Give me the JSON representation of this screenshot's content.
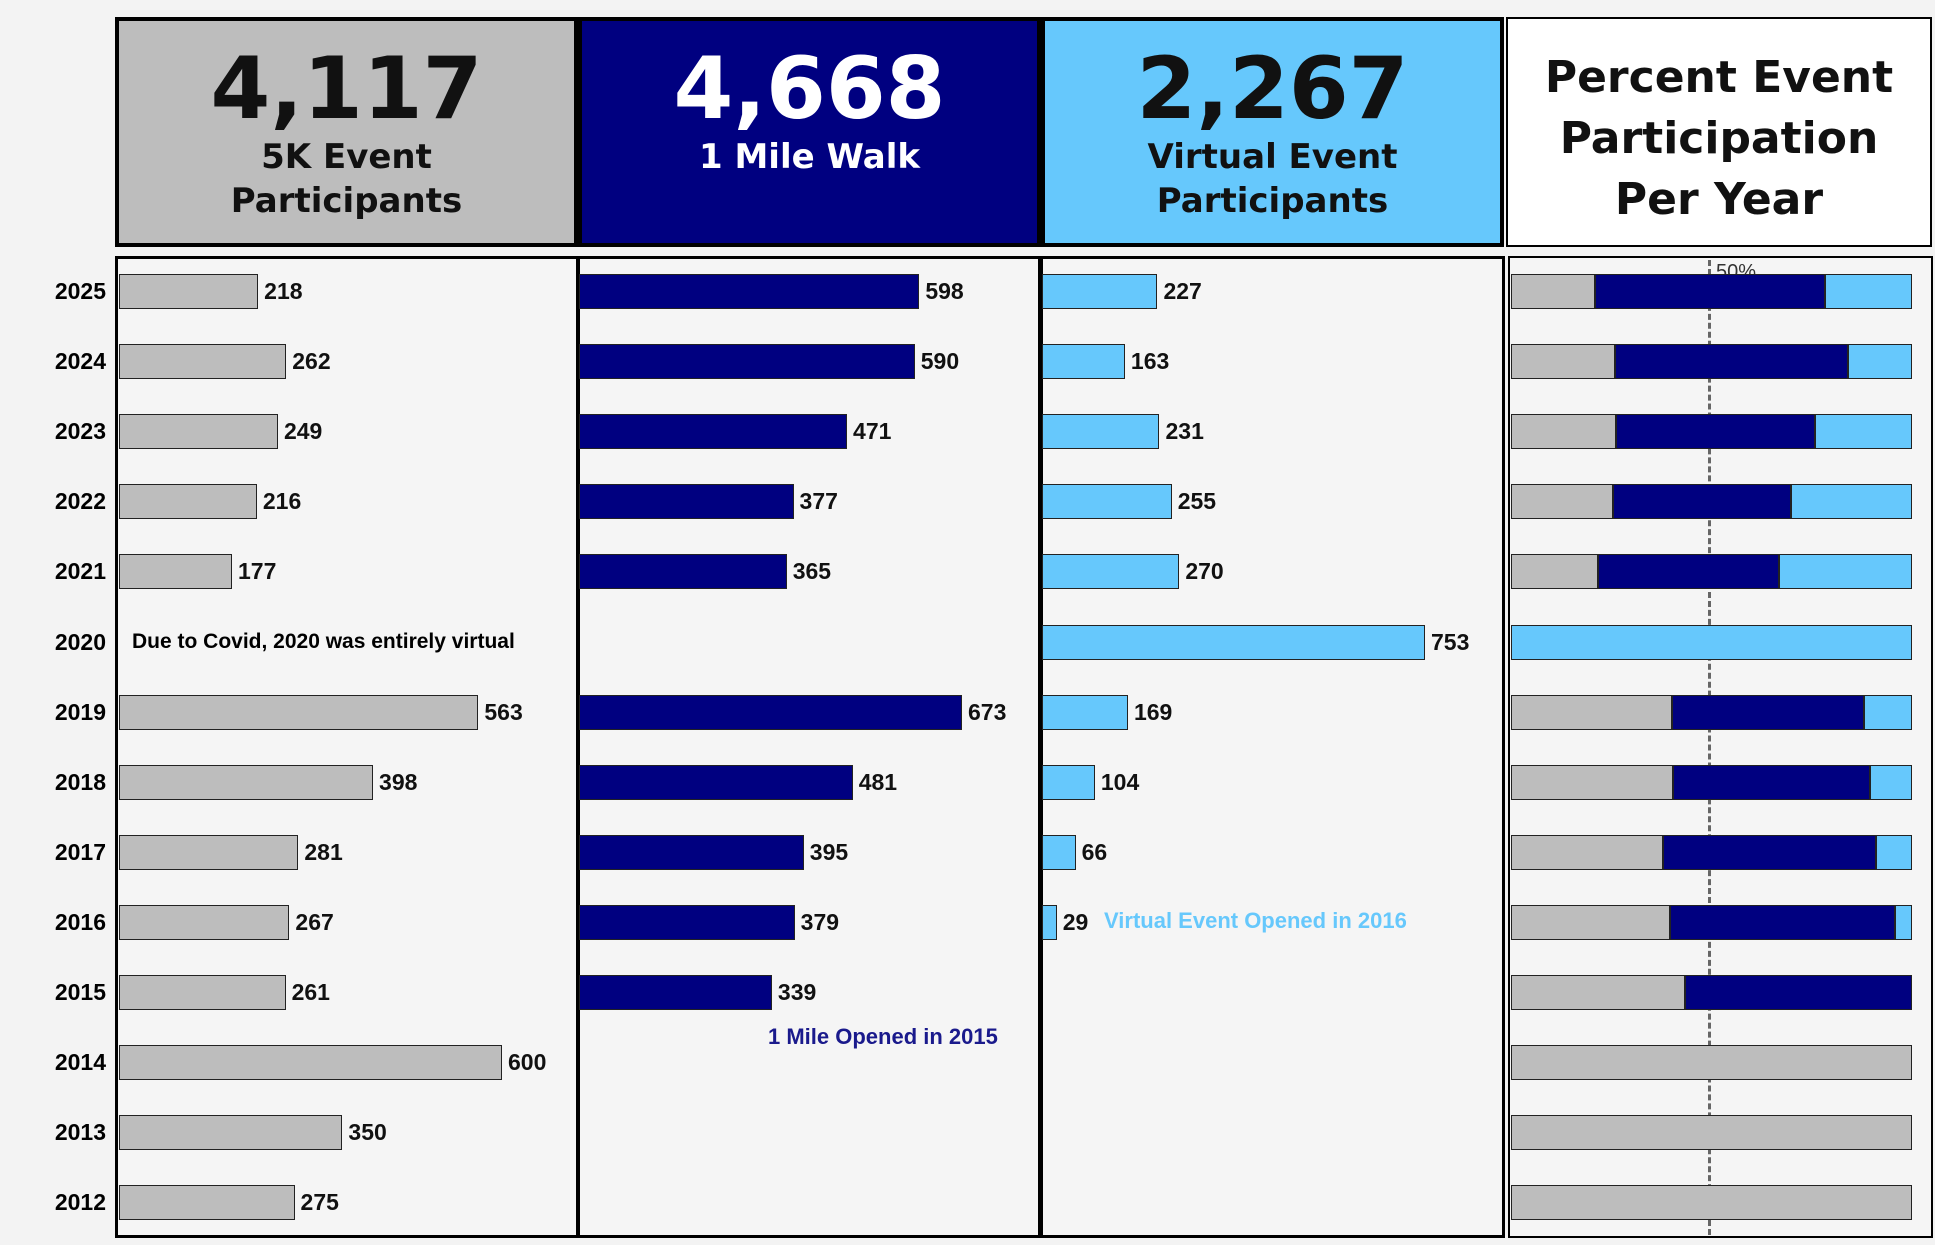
{
  "colors": {
    "fivek": "#bdbdbd",
    "mile": "#000080",
    "virtual": "#66c8fc"
  },
  "cards": {
    "fivek": {
      "value": "4,117",
      "label1": "5K Event",
      "label2": "Participants"
    },
    "mile": {
      "value": "4,668",
      "label1": "1 Mile Walk"
    },
    "virtual": {
      "value": "2,267",
      "label1": "Virtual Event",
      "label2": "Participants"
    },
    "percent": {
      "line1": "Percent Event",
      "line2": "Participation",
      "line3": "Per Year"
    }
  },
  "notes": {
    "covid": "Due to Covid, 2020 was entirely virtual",
    "mile_opened": "1 Mile Opened in 2015",
    "virtual_opened": "Virtual Event Opened in 2016",
    "fifty": "50%"
  },
  "chart_data": {
    "type": "bar",
    "categories": [
      "2025",
      "2024",
      "2023",
      "2022",
      "2021",
      "2020",
      "2019",
      "2018",
      "2017",
      "2016",
      "2015",
      "2014",
      "2013",
      "2012"
    ],
    "series": [
      {
        "name": "5K Event Participants",
        "values": [
          218,
          262,
          249,
          216,
          177,
          null,
          563,
          398,
          281,
          267,
          261,
          600,
          350,
          275
        ]
      },
      {
        "name": "1 Mile Walk",
        "values": [
          598,
          590,
          471,
          377,
          365,
          null,
          673,
          481,
          395,
          379,
          339,
          null,
          null,
          null
        ]
      },
      {
        "name": "Virtual Event Participants",
        "values": [
          227,
          163,
          231,
          255,
          270,
          753,
          169,
          104,
          66,
          29,
          null,
          null,
          null,
          null
        ]
      }
    ],
    "percent_chart": {
      "type": "stacked-bar-100",
      "title": "Percent Event Participation Per Year",
      "reference_line": 50
    }
  }
}
